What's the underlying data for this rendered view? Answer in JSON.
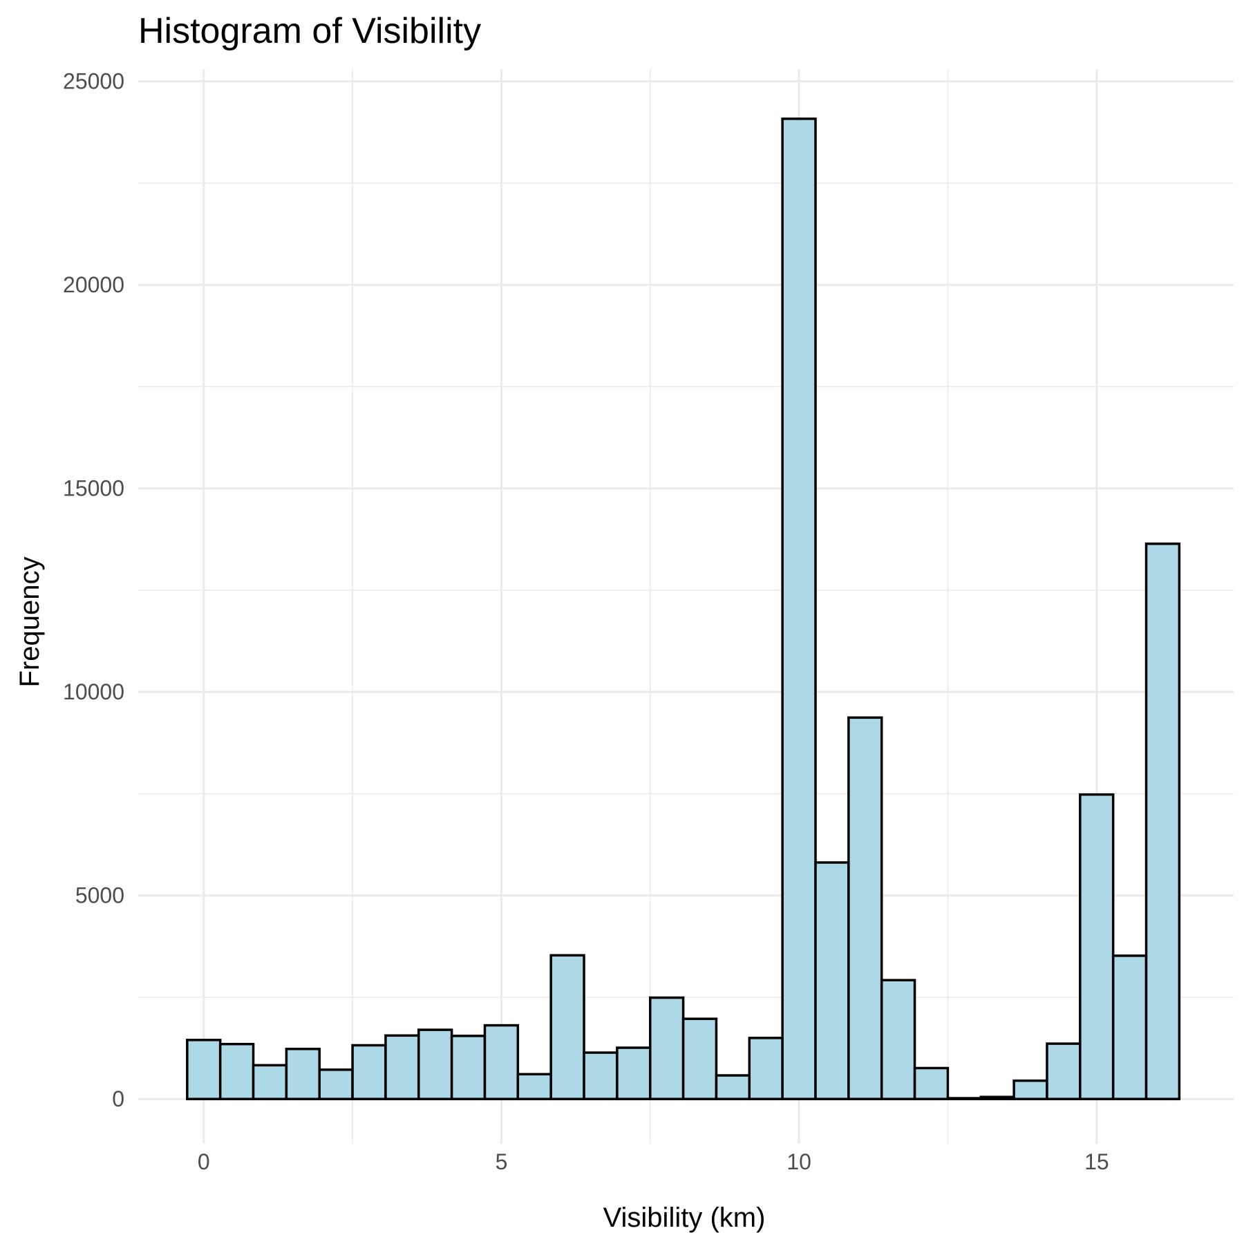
{
  "chart_data": {
    "type": "bar",
    "title": "Histogram of Visibility",
    "xlabel": "Visibility (km)",
    "ylabel": "Frequency",
    "xlim": [
      -1.1,
      17.3
    ],
    "ylim": [
      -1100,
      25300
    ],
    "x_ticks": [
      0,
      5,
      10,
      15
    ],
    "x_tick_labels": [
      "0",
      "5",
      "10",
      "15"
    ],
    "y_ticks": [
      0,
      5000,
      10000,
      15000,
      20000,
      25000
    ],
    "y_tick_labels": [
      "0",
      "5000",
      "10000",
      "15000",
      "20000",
      "25000"
    ],
    "grid": true,
    "bin_width": 0.5555,
    "bin_centers": [
      0.0,
      0.5555,
      1.111,
      1.6665,
      2.222,
      2.7775,
      3.333,
      3.8885,
      4.444,
      4.9995,
      5.555,
      6.1105,
      6.666,
      7.2215,
      7.777,
      8.3325,
      8.888,
      9.4435,
      9.999,
      10.5545,
      11.11,
      11.6655,
      12.221,
      12.7765,
      13.332,
      13.8875,
      14.443,
      14.9985,
      15.554,
      16.1095
    ],
    "values": [
      1450,
      1350,
      830,
      1230,
      720,
      1320,
      1560,
      1700,
      1550,
      1810,
      610,
      3530,
      1140,
      1260,
      2490,
      1970,
      580,
      1500,
      24080,
      5810,
      9370,
      2920,
      760,
      20,
      50,
      450,
      1360,
      7480,
      3520,
      13640
    ]
  }
}
